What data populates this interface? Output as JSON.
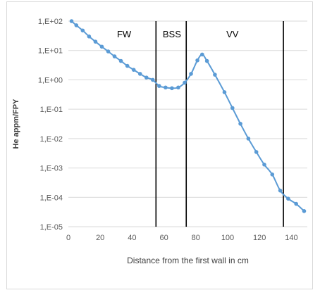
{
  "chart_data": {
    "type": "line",
    "title": "",
    "xlabel": "Distance from the first wall in cm",
    "ylabel": "He appm/FPY",
    "xlim": [
      0,
      150
    ],
    "ylim_log10": [
      -5,
      2
    ],
    "y_scale": "log",
    "grid": "horizontal",
    "x_ticks": [
      "0",
      "20",
      "40",
      "60",
      "80",
      "100",
      "120",
      "140"
    ],
    "y_ticks": [
      "1,E+02",
      "1,E+01",
      "1,E+00",
      "1,E-01",
      "1,E-02",
      "1,E-03",
      "1,E-04",
      "1,E-05"
    ],
    "series_color": "#5b9bd5",
    "series": [
      {
        "x": [
          2,
          5,
          9,
          13,
          17,
          21,
          25,
          29,
          33,
          37,
          41,
          45,
          49,
          53,
          57,
          61,
          65,
          69,
          73,
          77,
          81,
          84,
          87,
          92,
          98,
          103,
          108,
          113,
          118,
          123,
          128,
          133,
          138,
          143,
          148
        ],
        "y": [
          100,
          72,
          48,
          30,
          20,
          13.5,
          9.3,
          6.3,
          4.4,
          3.0,
          2.2,
          1.6,
          1.2,
          1.0,
          0.62,
          0.55,
          0.52,
          0.55,
          0.8,
          1.6,
          4.6,
          7.3,
          4.4,
          1.5,
          0.38,
          0.11,
          0.032,
          0.01,
          0.0035,
          0.0013,
          0.0006,
          0.00017,
          9e-05,
          6e-05,
          3.4e-05
        ]
      }
    ],
    "regions": [
      {
        "label": "FW",
        "x": 35
      },
      {
        "label": "BSS",
        "x": 65
      },
      {
        "label": "VV",
        "x": 103
      }
    ],
    "boundaries": [
      55,
      74,
      135
    ]
  }
}
